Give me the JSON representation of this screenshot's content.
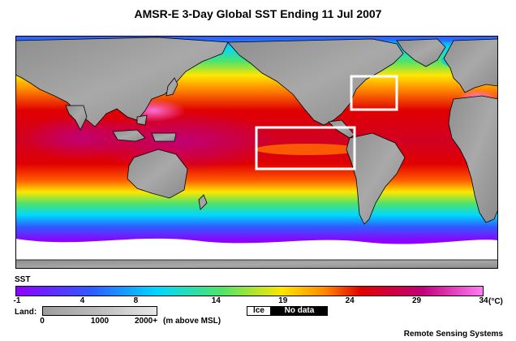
{
  "title": "AMSR-E 3-Day Global SST Ending 11 Jul 2007",
  "legend": {
    "sst_label": "SST",
    "sst_ticks": [
      "-1",
      "4",
      "8",
      "14",
      "19",
      "24",
      "29",
      "34"
    ],
    "sst_unit": "(°C)",
    "land_label": "Land:",
    "land_ticks": [
      "0",
      "1000",
      "2000+"
    ],
    "land_unit": "(m above MSL)",
    "ice_label": "Ice",
    "nodata_label": "No data"
  },
  "credit": "Remote Sensing Systems",
  "colors": {
    "cold": "#8f00ff",
    "blue": "#2f5bff",
    "cyan": "#00d7ff",
    "green": "#4fe36a",
    "yellow": "#ffe600",
    "orange": "#ff8a00",
    "red": "#e00000",
    "warm": "#c0007a",
    "hot": "#ff7cf6",
    "land": "#9a9a9a",
    "highlight_box": "#ffffff"
  }
}
